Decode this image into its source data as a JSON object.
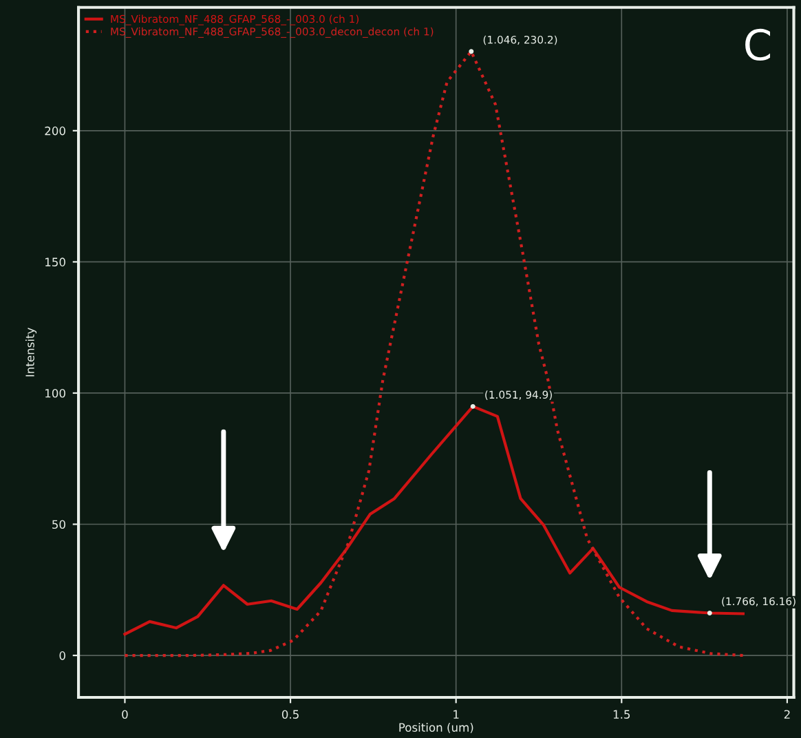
{
  "chart_data": {
    "type": "line",
    "xlabel": "Position (um)",
    "ylabel": "Intensity",
    "xlim": [
      -0.14,
      2.02
    ],
    "ylim": [
      -16,
      247
    ],
    "xticks": [
      0,
      0.5,
      1,
      1.5,
      2
    ],
    "yticks": [
      0,
      50,
      100,
      150,
      200
    ],
    "grid": true,
    "legend": "top left",
    "marker": "none",
    "series": [
      {
        "name": "MS_Vibratom_NF_488_GFAP_568_-_003.0 (ch 1)",
        "color": "#d01414",
        "line_style": "solid",
        "x": [
          0,
          0.075,
          0.155,
          0.22,
          0.298,
          0.37,
          0.442,
          0.52,
          0.592,
          0.668,
          0.741,
          0.814,
          0.925,
          1.051,
          1.125,
          1.195,
          1.264,
          1.344,
          1.414,
          1.493,
          1.576,
          1.652,
          1.766,
          1.867
        ],
        "values": [
          8.1,
          12.9,
          10.5,
          14.8,
          26.7,
          19.5,
          20.8,
          17.6,
          27.7,
          40.3,
          53.9,
          59.8,
          76.5,
          94.9,
          91.1,
          59.8,
          49.8,
          31.4,
          40.8,
          26,
          20.5,
          17.1,
          16.16,
          15.9
        ]
      },
      {
        "name": "MS_Vibratom_NF_488_GFAP_568_-_003.0_decon_decon (ch 1)",
        "color": "#d02020",
        "line_style": "dotted",
        "x": [
          0,
          0.2,
          0.3,
          0.38,
          0.44,
          0.509,
          0.592,
          0.675,
          0.737,
          0.779,
          0.869,
          0.931,
          0.973,
          1.046,
          1.119,
          1.202,
          1.25,
          1.278,
          1.306,
          1.34,
          1.396,
          1.493,
          1.576,
          1.673,
          1.77,
          1.867
        ],
        "values": [
          0,
          0,
          0.3,
          0.8,
          1.9,
          5.8,
          17,
          42.9,
          70.4,
          104.9,
          160,
          197.9,
          218.6,
          230.2,
          210,
          153,
          118.7,
          104.9,
          86,
          70.4,
          44.6,
          22.2,
          10.2,
          3.3,
          0.7,
          0
        ]
      }
    ],
    "annotations": [
      {
        "text": "(1.046, 230.2)",
        "x": 1.046,
        "y": 230.2
      },
      {
        "text": "(1.051, 94.9)",
        "x": 1.051,
        "y": 94.9
      },
      {
        "text": "(1.766, 16.16)",
        "x": 1.766,
        "y": 16.16
      },
      "C"
    ]
  }
}
